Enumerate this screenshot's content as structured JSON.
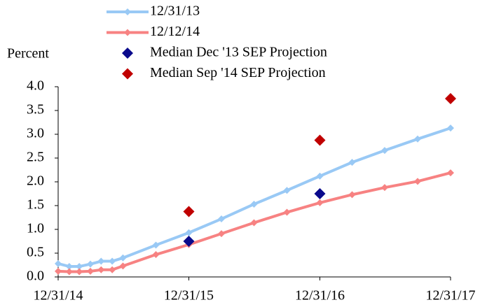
{
  "chart_data": {
    "type": "line",
    "y_label": "Percent",
    "series": [
      {
        "name": "12/31/13",
        "type": "line",
        "color": "#99c9f5",
        "x": [
          "2014-12-31",
          "2015-01-31",
          "2015-02-28",
          "2015-03-31",
          "2015-04-30",
          "2015-05-31",
          "2015-06-30",
          "2015-09-30",
          "2015-12-31",
          "2016-03-31",
          "2016-06-30",
          "2016-09-30",
          "2016-12-31",
          "2017-03-31",
          "2017-06-30",
          "2017-09-30",
          "2017-12-31"
        ],
        "values": [
          0.28,
          0.22,
          0.22,
          0.27,
          0.33,
          0.33,
          0.4,
          0.67,
          0.93,
          1.22,
          1.53,
          1.82,
          2.12,
          2.41,
          2.66,
          2.9,
          3.13
        ]
      },
      {
        "name": "12/12/14",
        "type": "line",
        "color": "#f78282",
        "x": [
          "2014-12-31",
          "2015-01-31",
          "2015-02-28",
          "2015-03-31",
          "2015-04-30",
          "2015-05-31",
          "2015-06-30",
          "2015-09-30",
          "2015-12-31",
          "2016-03-31",
          "2016-06-30",
          "2016-09-30",
          "2016-12-31",
          "2017-03-31",
          "2017-06-30",
          "2017-09-30",
          "2017-12-31"
        ],
        "values": [
          0.12,
          0.11,
          0.11,
          0.12,
          0.15,
          0.15,
          0.23,
          0.47,
          0.68,
          0.91,
          1.14,
          1.36,
          1.56,
          1.73,
          1.88,
          2.01,
          2.19
        ]
      },
      {
        "name": "Median Dec '13 SEP Projection",
        "type": "scatter",
        "color": "#0a0a8c",
        "x": [
          "2015-12-31",
          "2016-12-31"
        ],
        "values": [
          0.75,
          1.75
        ]
      },
      {
        "name": "Median Sep '14 SEP Projection",
        "type": "scatter",
        "color": "#c00000",
        "x": [
          "2015-12-31",
          "2016-12-31",
          "2017-12-31"
        ],
        "values": [
          1.375,
          2.875,
          3.75
        ]
      }
    ],
    "xlim": [
      "2014-12-31",
      "2017-12-31"
    ],
    "xticks": [
      {
        "value": "2014-12-31",
        "label": "12/31/14"
      },
      {
        "value": "2015-12-31",
        "label": "12/31/15"
      },
      {
        "value": "2016-12-31",
        "label": "12/31/16"
      },
      {
        "value": "2017-12-31",
        "label": "12/31/17"
      }
    ],
    "ylim": [
      0,
      4
    ],
    "yticks": [
      {
        "value": 0,
        "label": "0.0"
      },
      {
        "value": 0.5,
        "label": "0.5"
      },
      {
        "value": 1,
        "label": "1.0"
      },
      {
        "value": 1.5,
        "label": "1.5"
      },
      {
        "value": 2,
        "label": "2.0"
      },
      {
        "value": 2.5,
        "label": "2.5"
      },
      {
        "value": 3,
        "label": "3.0"
      },
      {
        "value": 3.5,
        "label": "3.5"
      },
      {
        "value": 4,
        "label": "4.0"
      }
    ],
    "grid": false
  }
}
